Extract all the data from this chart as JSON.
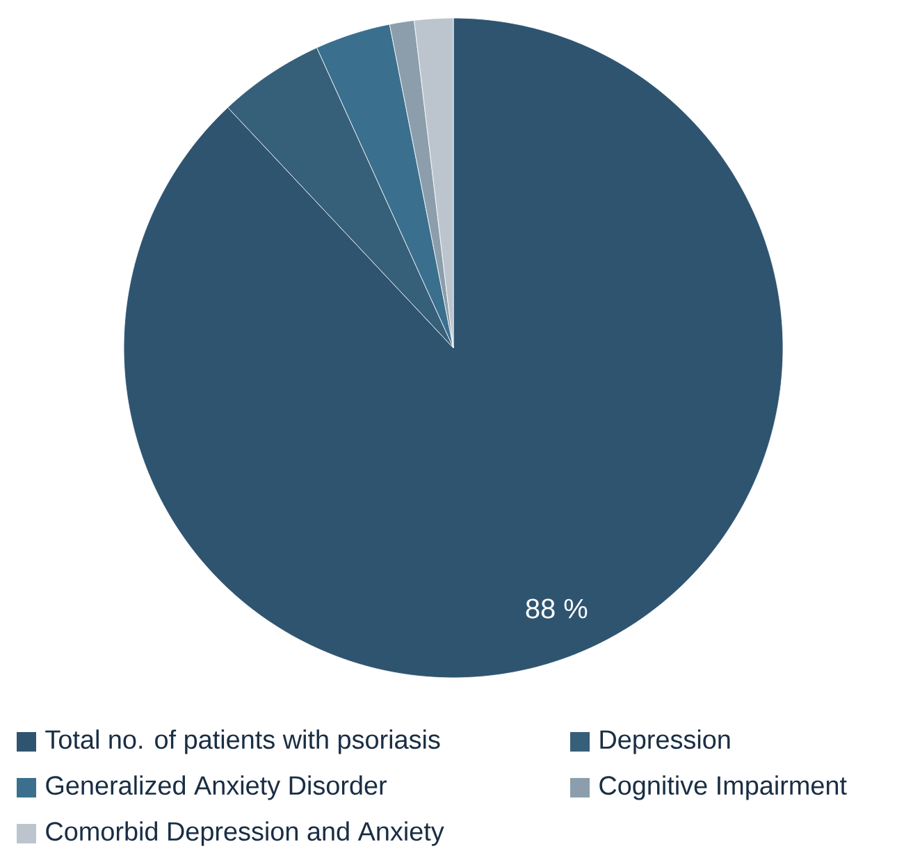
{
  "chart_data": {
    "type": "pie",
    "categories": [
      "Total no. of patients with psoriasis",
      "Depression",
      "Generalized Anxiety Disorder",
      "Cognitive Impairment",
      "Comorbid Depression and Anxiety"
    ],
    "values": [
      88,
      5.2,
      3.7,
      1.2,
      1.9
    ],
    "colors": [
      "#2f5470",
      "#365f7a",
      "#3a6f8e",
      "#8c9eac",
      "#bcc5ce"
    ],
    "value_labels": [
      "88 %",
      null,
      null,
      null,
      null
    ],
    "legend": "bottom"
  }
}
